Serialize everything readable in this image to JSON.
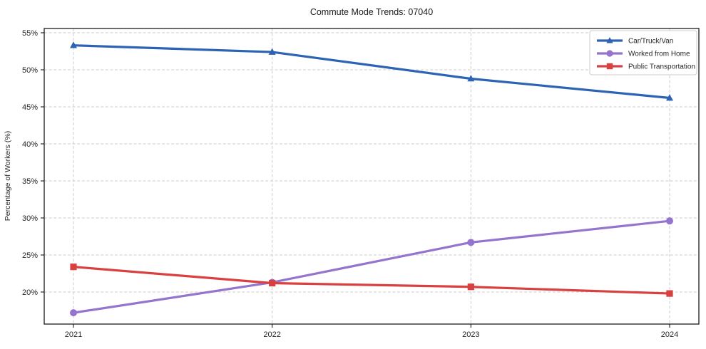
{
  "title": "Commute Mode Trends: 07040",
  "chart_data": {
    "type": "line",
    "x": [
      "2021",
      "2022",
      "2023",
      "2024"
    ],
    "series": [
      {
        "name": "Car/Truck/Van",
        "marker": "triangle",
        "color": "#2d63b5",
        "values": [
          53.3,
          52.4,
          48.8,
          46.2
        ]
      },
      {
        "name": "Worked from Home",
        "marker": "circle",
        "color": "#9574ce",
        "values": [
          17.2,
          21.3,
          26.7,
          29.6
        ]
      },
      {
        "name": "Public Transportation",
        "marker": "square",
        "color": "#d8413f",
        "values": [
          23.4,
          21.2,
          20.7,
          19.8
        ]
      }
    ],
    "xlabel": "",
    "ylabel": "Percentage of Workers (%)",
    "yticks": [
      20,
      25,
      30,
      35,
      40,
      45,
      50,
      55
    ],
    "ytick_labels": [
      "20%",
      "25%",
      "30%",
      "35%",
      "40%",
      "45%",
      "50%",
      "55%"
    ],
    "ylim": [
      15.7,
      55.6
    ],
    "grid": true,
    "grid_style": "dashed",
    "legend_position": "upper right",
    "colors": {
      "grid": "#cccccc",
      "spine": "#1a1a1a",
      "text": "#262626",
      "background": "#ffffff",
      "legend_border": "#cccccc"
    }
  }
}
